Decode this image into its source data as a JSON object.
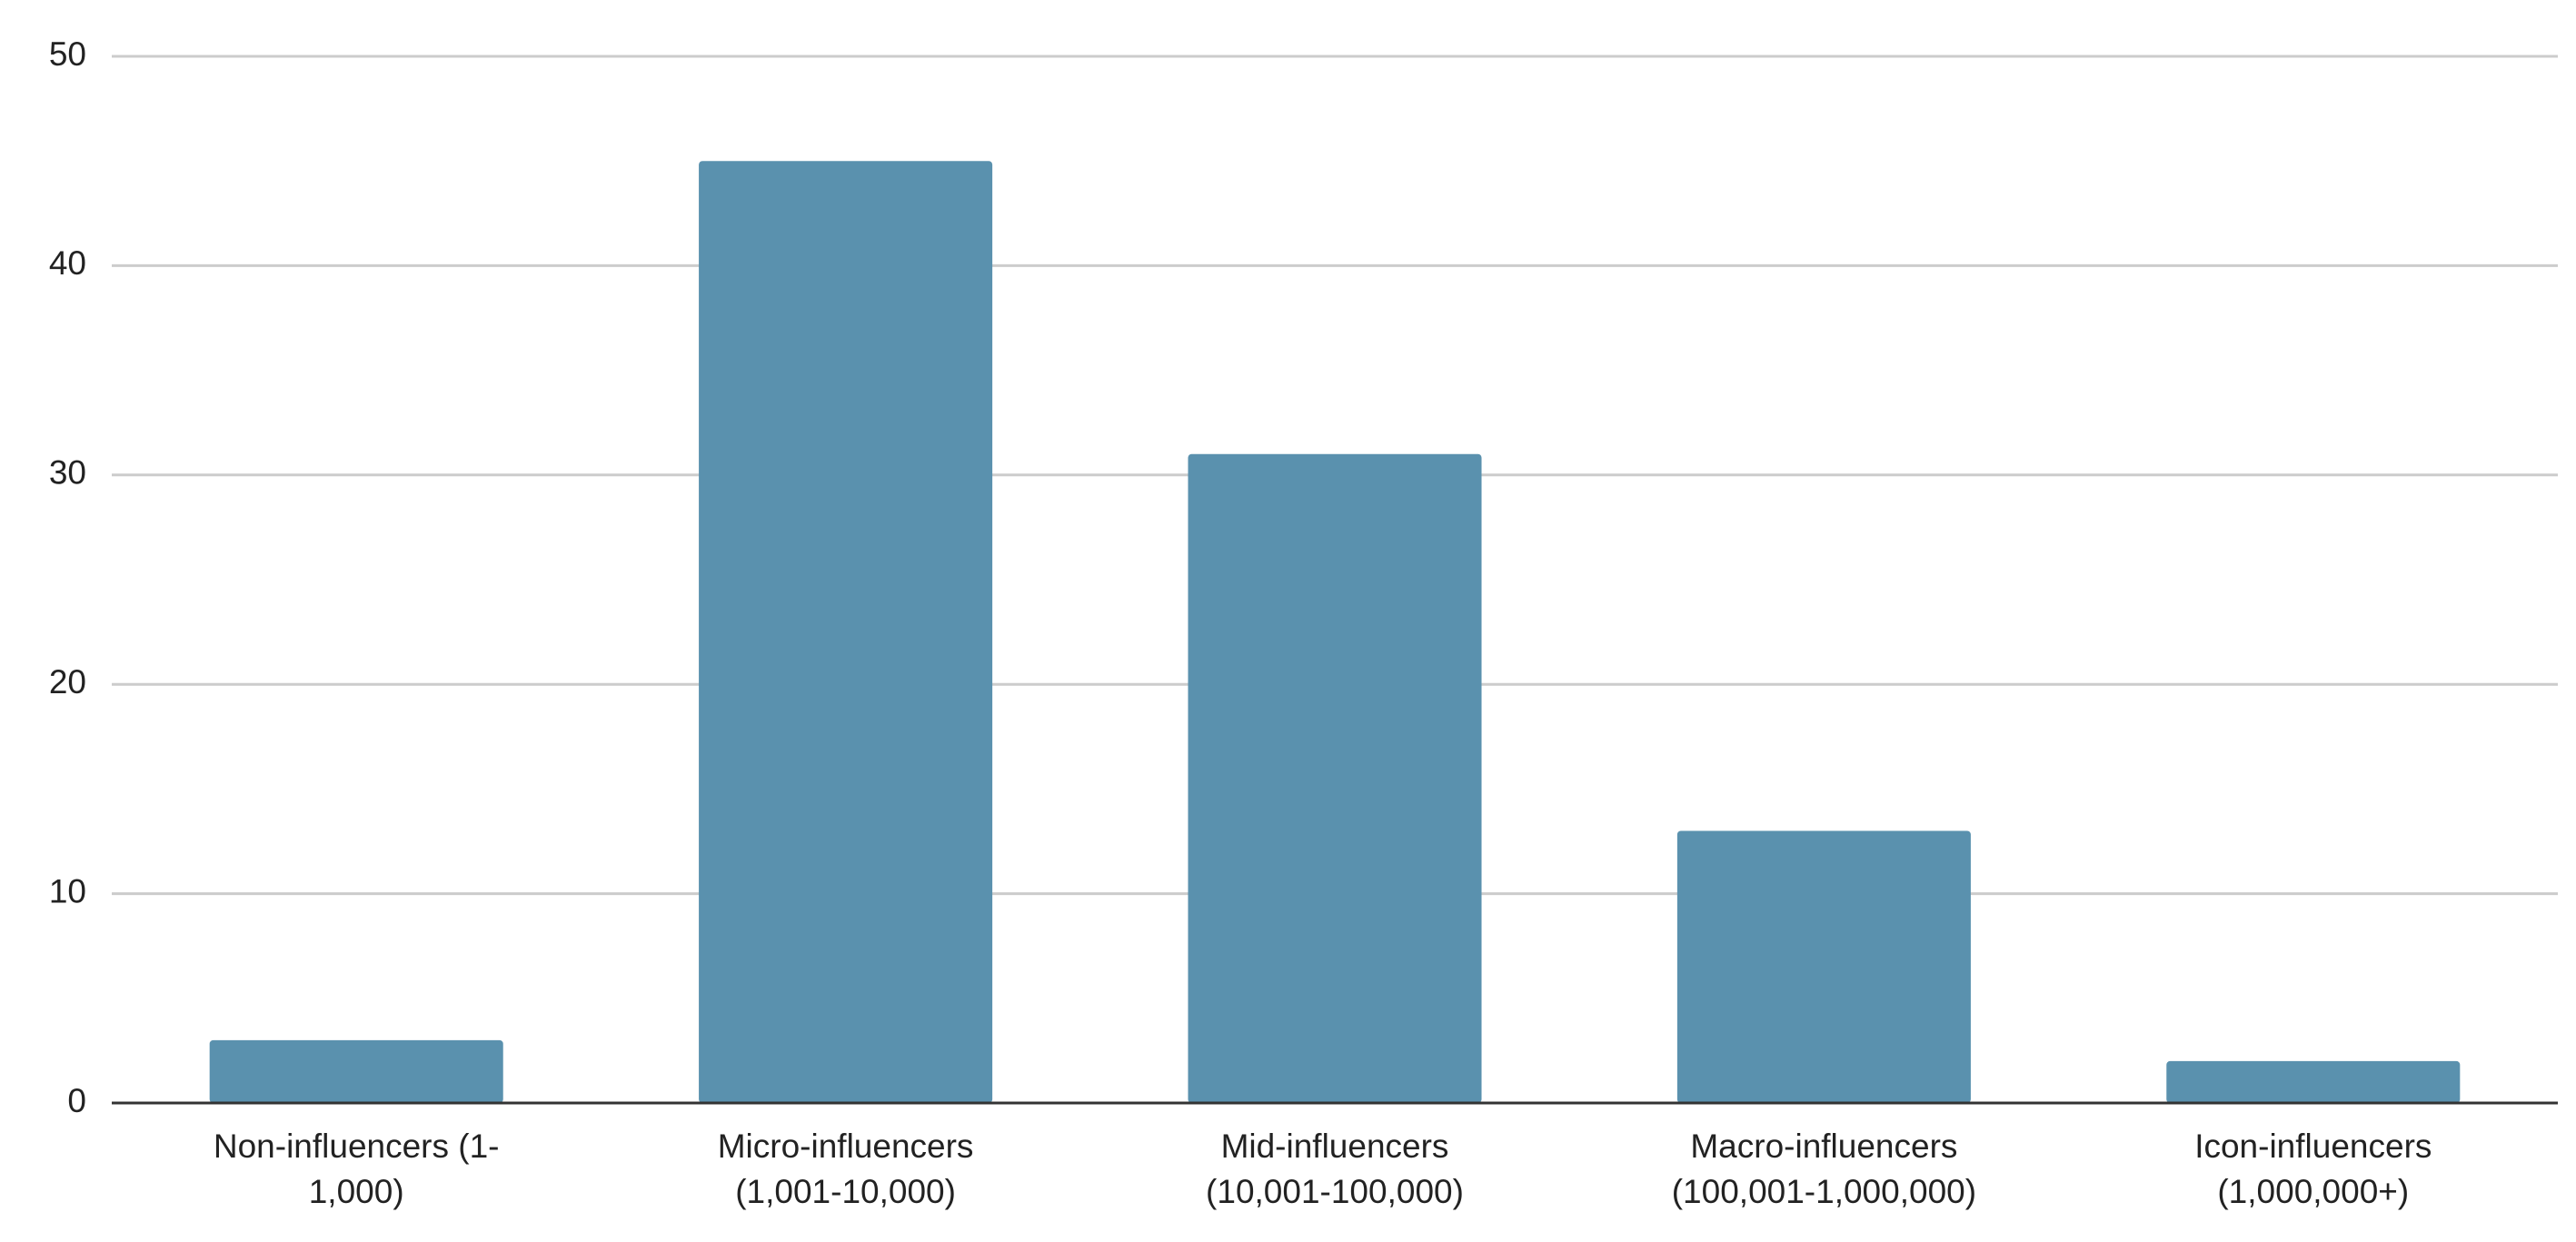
{
  "chart_data": {
    "type": "bar",
    "categories": [
      [
        "Non-influencers (1-",
        "1,000)"
      ],
      [
        "Micro-influencers",
        "(1,001-10,000)"
      ],
      [
        "Mid-influencers",
        "(10,001-100,000)"
      ],
      [
        "Macro-influencers",
        "(100,001-1,000,000)"
      ],
      [
        "Icon-influencers",
        "(1,000,000+)"
      ]
    ],
    "values": [
      3,
      45,
      31,
      13,
      2
    ],
    "color": "#5a91ae",
    "ylim": [
      0,
      50
    ],
    "yticks": [
      0,
      10,
      20,
      30,
      40,
      50
    ],
    "grid": true
  }
}
